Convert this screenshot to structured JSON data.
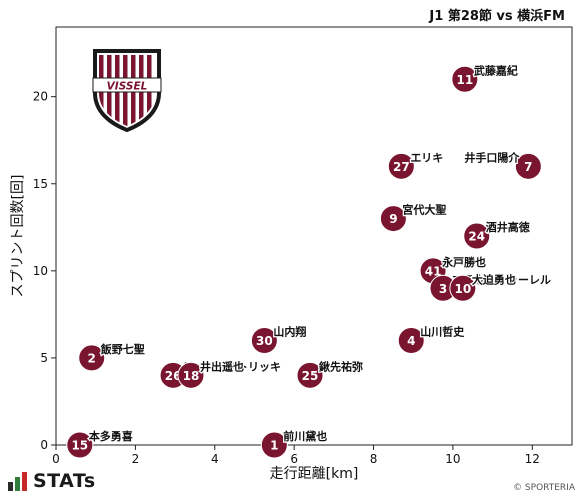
{
  "header": {
    "match_title": "J1 第28節 vs 横浜FM"
  },
  "team": {
    "logo_text": "VISSEL",
    "primary_color": "#7a1530",
    "logo_stroke": "#1a1a1a"
  },
  "footer": {
    "brand": "STATs",
    "copyright": "© SPORTERIA"
  },
  "chart_data": {
    "type": "scatter",
    "title": "J1 第28節 vs 横浜FM",
    "xlabel": "走行距離[km]",
    "ylabel": "スプリント回数[回]",
    "xlim": [
      0,
      13
    ],
    "ylim": [
      0,
      24
    ],
    "xticks": [
      0,
      2,
      4,
      6,
      8,
      10,
      12
    ],
    "yticks": [
      0,
      5,
      10,
      15,
      20
    ],
    "grid": false,
    "marker_color": "#7a1530",
    "points": [
      {
        "number": "11",
        "name": "武藤嘉紀",
        "x": 10.3,
        "y": 21
      },
      {
        "number": "27",
        "name": "エリキ",
        "x": 8.7,
        "y": 16
      },
      {
        "number": "7",
        "name": "井手口陽介",
        "x": 11.9,
        "y": 16
      },
      {
        "number": "9",
        "name": "宮代大聖",
        "x": 8.5,
        "y": 13
      },
      {
        "number": "24",
        "name": "酒井高徳",
        "x": 10.6,
        "y": 12
      },
      {
        "number": "41",
        "name": "永戸勝也",
        "x": 9.5,
        "y": 10
      },
      {
        "number": "3",
        "name": "マテウストゥーレル",
        "x": 9.75,
        "y": 9
      },
      {
        "number": "10",
        "name": "大迫勇也",
        "x": 10.25,
        "y": 9
      },
      {
        "number": "30",
        "name": "山内翔",
        "x": 5.25,
        "y": 6
      },
      {
        "number": "4",
        "name": "山川哲史",
        "x": 8.95,
        "y": 6
      },
      {
        "number": "2",
        "name": "飯野七聖",
        "x": 0.9,
        "y": 5
      },
      {
        "number": "26",
        "name": "ジェアンパトリッキ",
        "x": 2.95,
        "y": 4
      },
      {
        "number": "18",
        "name": "井出遥也",
        "x": 3.4,
        "y": 4
      },
      {
        "number": "25",
        "name": "鍬先祐弥",
        "x": 6.4,
        "y": 4
      },
      {
        "number": "15",
        "name": "本多勇喜",
        "x": 0.6,
        "y": 0
      },
      {
        "number": "1",
        "name": "前川黛也",
        "x": 5.5,
        "y": 0
      }
    ]
  }
}
